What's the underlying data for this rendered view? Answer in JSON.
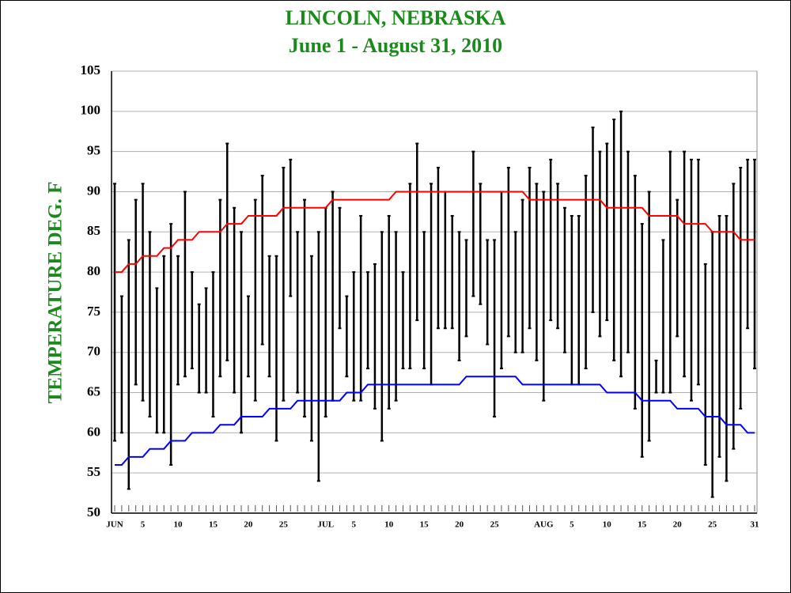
{
  "chart_data": {
    "type": "range_bar",
    "title": "LINCOLN, NEBRASKA",
    "subtitle": "June 1 - August 31, 2010",
    "y_label": "TEMPERATURE DEG. F",
    "categories": [
      "JUN",
      null,
      null,
      null,
      "5",
      null,
      null,
      null,
      null,
      "10",
      null,
      null,
      null,
      null,
      "15",
      null,
      null,
      null,
      null,
      "20",
      null,
      null,
      null,
      null,
      "25",
      null,
      null,
      null,
      null,
      null,
      "JUL",
      null,
      null,
      null,
      "5",
      null,
      null,
      null,
      null,
      "10",
      null,
      null,
      null,
      null,
      "15",
      null,
      null,
      null,
      null,
      "20",
      null,
      null,
      null,
      null,
      "25",
      null,
      null,
      null,
      null,
      null,
      null,
      "AUG",
      null,
      null,
      null,
      "5",
      null,
      null,
      null,
      null,
      "10",
      null,
      null,
      null,
      null,
      "15",
      null,
      null,
      null,
      null,
      "20",
      null,
      null,
      null,
      null,
      "25",
      null,
      null,
      null,
      null,
      null,
      "31"
    ],
    "highs": [
      91,
      77,
      84,
      89,
      91,
      85,
      78,
      82,
      86,
      82,
      90,
      80,
      76,
      78,
      80,
      89,
      96,
      88,
      85,
      77,
      89,
      92,
      82,
      82,
      93,
      94,
      85,
      89,
      82,
      85,
      88,
      90,
      88,
      77,
      80,
      87,
      80,
      81,
      85,
      87,
      85,
      80,
      91,
      96,
      85,
      91,
      93,
      90,
      87,
      85,
      84,
      95,
      91,
      84,
      84,
      90,
      93,
      85,
      89,
      93,
      91,
      90,
      94,
      91,
      88,
      87,
      87,
      92,
      98,
      95,
      96,
      99,
      100,
      95,
      92,
      86,
      90,
      69,
      84,
      95,
      89,
      95,
      94,
      94,
      81,
      85,
      87,
      87,
      91,
      93,
      94,
      94
    ],
    "lows": [
      59,
      60,
      53,
      66,
      64,
      62,
      60,
      60,
      56,
      66,
      67,
      68,
      65,
      65,
      62,
      67,
      69,
      65,
      60,
      67,
      64,
      71,
      67,
      59,
      64,
      77,
      65,
      62,
      59,
      54,
      62,
      64,
      73,
      67,
      64,
      64,
      68,
      63,
      59,
      63,
      64,
      68,
      68,
      74,
      68,
      66,
      73,
      73,
      73,
      69,
      72,
      77,
      76,
      71,
      62,
      68,
      72,
      70,
      70,
      73,
      69,
      64,
      74,
      73,
      70,
      66,
      66,
      68,
      75,
      72,
      74,
      69,
      67,
      70,
      63,
      57,
      59,
      65,
      65,
      65,
      72,
      67,
      64,
      66,
      56,
      52,
      57,
      54,
      58,
      63,
      73,
      68
    ],
    "normal_high": [
      80,
      80,
      81,
      81,
      82,
      82,
      82,
      83,
      83,
      84,
      84,
      84,
      85,
      85,
      85,
      85,
      86,
      86,
      86,
      87,
      87,
      87,
      87,
      87,
      88,
      88,
      88,
      88,
      88,
      88,
      88,
      89,
      89,
      89,
      89,
      89,
      89,
      89,
      89,
      89,
      90,
      90,
      90,
      90,
      90,
      90,
      90,
      90,
      90,
      90,
      90,
      90,
      90,
      90,
      90,
      90,
      90,
      90,
      90,
      89,
      89,
      89,
      89,
      89,
      89,
      89,
      89,
      89,
      89,
      89,
      88,
      88,
      88,
      88,
      88,
      88,
      87,
      87,
      87,
      87,
      87,
      86,
      86,
      86,
      86,
      85,
      85,
      85,
      85,
      84,
      84,
      84
    ],
    "normal_low": [
      56,
      56,
      57,
      57,
      57,
      58,
      58,
      58,
      59,
      59,
      59,
      60,
      60,
      60,
      60,
      61,
      61,
      61,
      62,
      62,
      62,
      62,
      63,
      63,
      63,
      63,
      64,
      64,
      64,
      64,
      64,
      64,
      64,
      65,
      65,
      65,
      66,
      66,
      66,
      66,
      66,
      66,
      66,
      66,
      66,
      66,
      66,
      66,
      66,
      66,
      67,
      67,
      67,
      67,
      67,
      67,
      67,
      67,
      66,
      66,
      66,
      66,
      66,
      66,
      66,
      66,
      66,
      66,
      66,
      66,
      65,
      65,
      65,
      65,
      65,
      64,
      64,
      64,
      64,
      64,
      63,
      63,
      63,
      63,
      62,
      62,
      62,
      61,
      61,
      61,
      60,
      60
    ],
    "bar_color": "#000000",
    "normal_high_color": "#ff0000",
    "normal_low_color": "#0000ff",
    "ylim": [
      50,
      105
    ],
    "yticks": [
      50,
      55,
      60,
      65,
      70,
      75,
      80,
      85,
      90,
      95,
      100,
      105
    ],
    "grid": true
  }
}
